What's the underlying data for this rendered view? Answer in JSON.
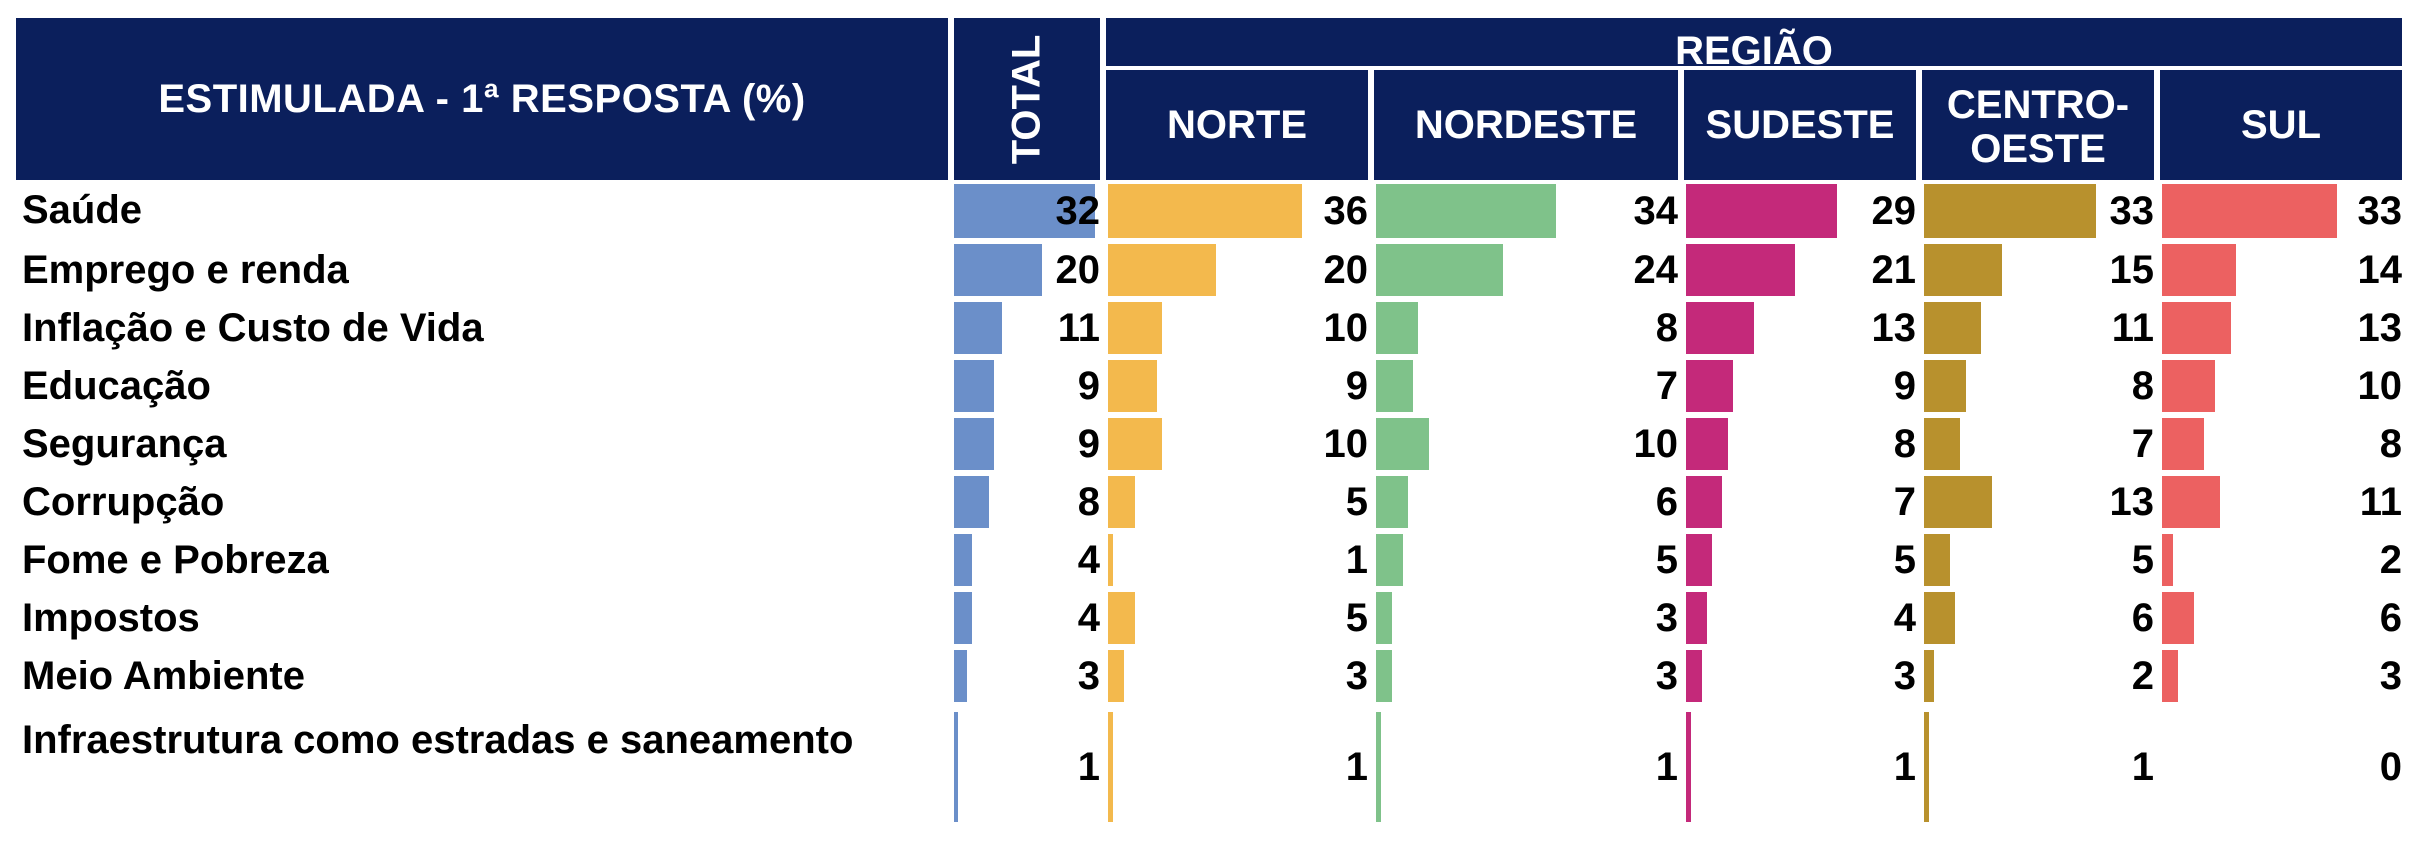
{
  "chart_data": {
    "type": "table",
    "title": "ESTIMULADA - 1ª RESPOSTA (%)",
    "group_header": "REGIÃO",
    "columns": [
      {
        "key": "total",
        "label": "TOTAL",
        "color": "#6b8fc9",
        "values": [
          32,
          20,
          11,
          9,
          9,
          8,
          4,
          4,
          3,
          1
        ]
      },
      {
        "key": "norte",
        "label": "NORTE",
        "color": "#f3b94d",
        "values": [
          36,
          20,
          10,
          9,
          10,
          5,
          1,
          5,
          3,
          1
        ]
      },
      {
        "key": "nordeste",
        "label": "NORDESTE",
        "color": "#7fc28a",
        "values": [
          34,
          24,
          8,
          7,
          10,
          6,
          5,
          3,
          3,
          1
        ]
      },
      {
        "key": "sudeste",
        "label": "SUDESTE",
        "color": "#c4297a",
        "values": [
          29,
          21,
          13,
          9,
          8,
          7,
          5,
          4,
          3,
          1
        ]
      },
      {
        "key": "centro_oeste",
        "label": "CENTRO-OESTE",
        "color": "#b8912d",
        "values": [
          33,
          15,
          11,
          8,
          7,
          13,
          5,
          6,
          2,
          1
        ]
      },
      {
        "key": "sul",
        "label": "SUL",
        "color": "#ec6161",
        "values": [
          33,
          14,
          13,
          10,
          8,
          11,
          2,
          6,
          3,
          0
        ]
      }
    ],
    "rows": [
      "Saúde",
      "Emprego e renda",
      "Inflação e Custo de Vida",
      "Educação",
      "Segurança",
      "Corrupção",
      "Fome e Pobreza",
      "Impostos",
      "Meio Ambiente",
      "Infraestrutura como estradas e saneamento"
    ]
  }
}
